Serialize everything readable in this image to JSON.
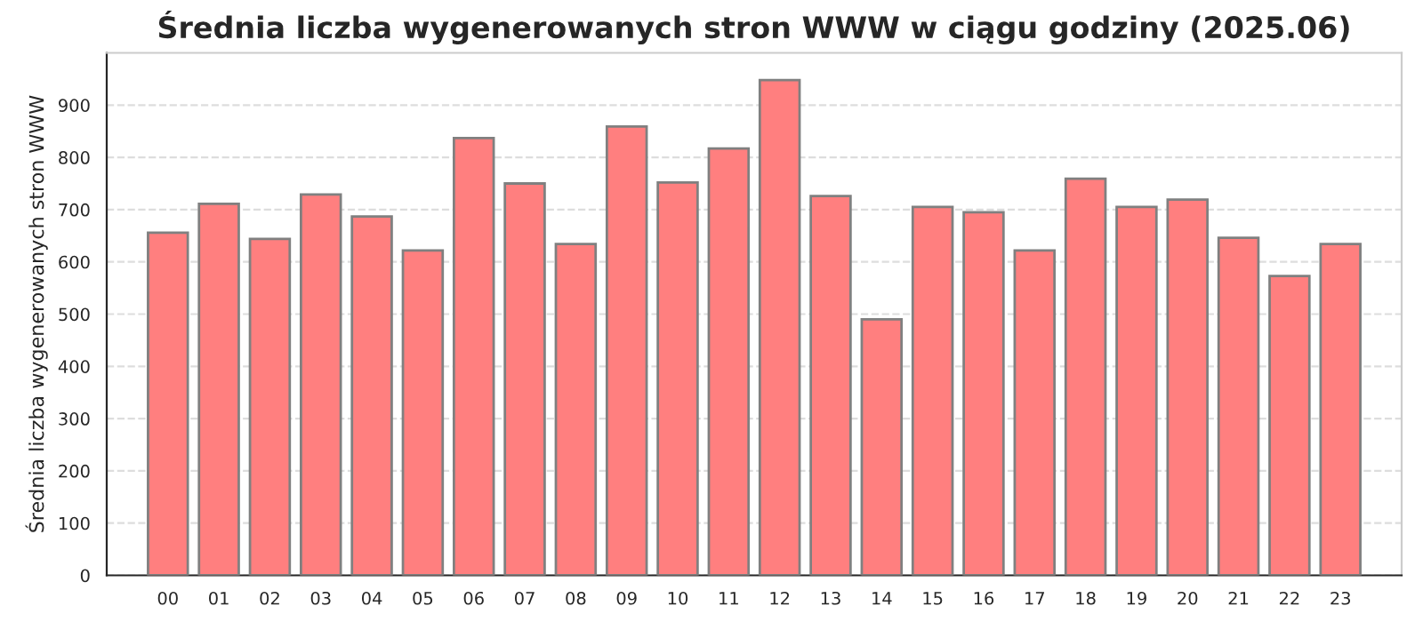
{
  "chart_data": {
    "type": "bar",
    "title": "Średnia liczba wygenerowanych stron WWW w ciągu godziny (2025.06)",
    "ylabel": "Średnia liczba wygenerowanych stron WWW",
    "categories": [
      "00",
      "01",
      "02",
      "03",
      "04",
      "05",
      "06",
      "07",
      "08",
      "09",
      "10",
      "11",
      "12",
      "13",
      "14",
      "15",
      "16",
      "17",
      "18",
      "19",
      "20",
      "21",
      "22",
      "23"
    ],
    "values": [
      656,
      711,
      644,
      729,
      687,
      622,
      837,
      750,
      634,
      859,
      752,
      817,
      948,
      726,
      490,
      705,
      695,
      622,
      759,
      705,
      719,
      646,
      573,
      634
    ],
    "color": "#ff7f7f",
    "ylim": [
      0,
      1000
    ],
    "yticks": [
      0,
      100,
      200,
      300,
      400,
      500,
      600,
      700,
      800,
      900
    ],
    "grid": "y"
  }
}
